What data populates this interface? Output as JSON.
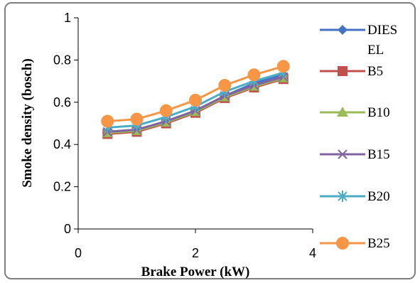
{
  "chart_data": {
    "type": "line",
    "title": "",
    "xlabel": "Brake Power (kW)",
    "ylabel": "Smoke density (bosch)",
    "xlim": [
      0,
      4
    ],
    "ylim": [
      0,
      1
    ],
    "x_ticks": [
      "0",
      "2",
      "4"
    ],
    "y_ticks": [
      "0",
      "0.2",
      "0.4",
      "0.6",
      "0.8",
      "1"
    ],
    "grid": false,
    "legend": "right",
    "x": [
      0.5,
      1.0,
      1.5,
      2.0,
      2.5,
      3.0,
      3.5
    ],
    "series": [
      {
        "name": "DIESEL",
        "legend_lines": [
          "DIES",
          "EL"
        ],
        "color": "#4472C4",
        "marker": "diamond",
        "values": [
          0.46,
          0.47,
          0.51,
          0.56,
          0.63,
          0.69,
          0.73
        ]
      },
      {
        "name": "B5",
        "legend_lines": [
          "B5"
        ],
        "color": "#C0504D",
        "marker": "square",
        "values": [
          0.45,
          0.46,
          0.5,
          0.55,
          0.62,
          0.67,
          0.71
        ]
      },
      {
        "name": "B10",
        "legend_lines": [
          "B10"
        ],
        "color": "#9BBB59",
        "marker": "triangle",
        "values": [
          0.455,
          0.465,
          0.505,
          0.555,
          0.625,
          0.675,
          0.715
        ]
      },
      {
        "name": "B15",
        "legend_lines": [
          "B15"
        ],
        "color": "#8064A2",
        "marker": "x",
        "values": [
          0.46,
          0.47,
          0.51,
          0.56,
          0.63,
          0.68,
          0.72
        ]
      },
      {
        "name": "B20",
        "legend_lines": [
          "B20"
        ],
        "color": "#4BACC6",
        "marker": "star",
        "values": [
          0.48,
          0.49,
          0.53,
          0.58,
          0.65,
          0.7,
          0.74
        ]
      },
      {
        "name": "B25",
        "legend_lines": [
          "B25"
        ],
        "color": "#F79646",
        "marker": "circle",
        "values": [
          0.51,
          0.52,
          0.56,
          0.61,
          0.68,
          0.73,
          0.77
        ]
      }
    ]
  }
}
